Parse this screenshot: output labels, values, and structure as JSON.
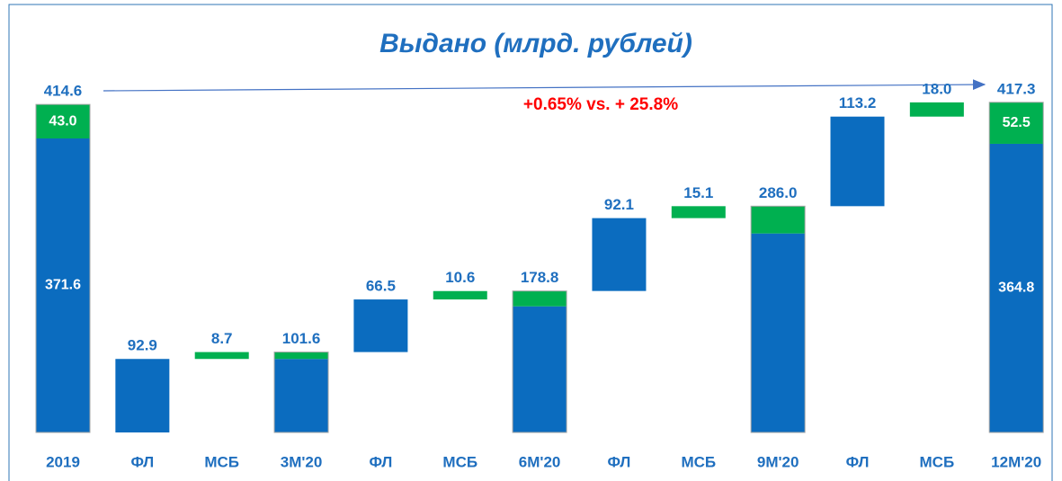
{
  "chart_data": {
    "type": "waterfall",
    "title": "Выдано (млрд. рублей)",
    "annotation": "+0.65% vs. + 25.8%",
    "categories": [
      "2019",
      "ФЛ",
      "МСБ",
      "3М'20",
      "ФЛ",
      "МСБ",
      "6М'20",
      "ФЛ",
      "МСБ",
      "9М'20",
      "ФЛ",
      "МСБ",
      "12М'20"
    ],
    "series": [
      {
        "color": "#0b6cbf",
        "values": [
          371.6,
          92.9,
          null,
          92.9,
          66.5,
          null,
          159.4,
          92.1,
          null,
          251.5,
          113.2,
          null,
          364.8
        ],
        "value_labels": [
          "371.6",
          "92.9",
          null,
          null,
          "66.5",
          null,
          null,
          "92.1",
          null,
          null,
          "113.2",
          null,
          "364.8"
        ]
      },
      {
        "color": "#00b050",
        "values": [
          43.0,
          null,
          8.7,
          8.7,
          null,
          10.6,
          19.3,
          null,
          15.1,
          34.4,
          null,
          18.0,
          52.5
        ],
        "value_labels": [
          "43.0",
          null,
          "8.7",
          null,
          null,
          "10.6",
          null,
          null,
          "15.1",
          null,
          null,
          "18.0",
          "52.5"
        ]
      }
    ],
    "totals": [
      414.6,
      null,
      null,
      101.6,
      null,
      null,
      178.8,
      null,
      null,
      286.0,
      null,
      null,
      417.3
    ],
    "total_labels": [
      "414.6",
      null,
      null,
      "101.6",
      null,
      null,
      "178.8",
      null,
      null,
      "286.0",
      null,
      null,
      "417.3"
    ],
    "ylim": [
      0,
      450
    ]
  }
}
